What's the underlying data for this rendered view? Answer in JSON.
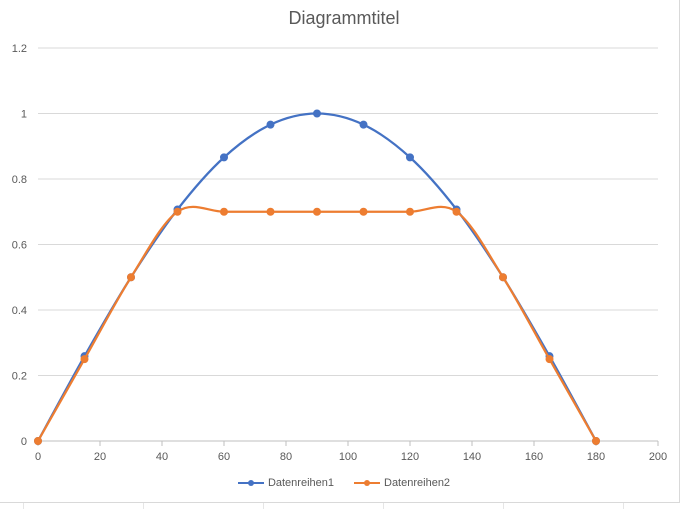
{
  "chart_data": {
    "type": "line",
    "title": "Diagrammtitel",
    "xlim": [
      0,
      200
    ],
    "ylim": [
      0,
      1.2
    ],
    "x_ticks": [
      0,
      20,
      40,
      60,
      80,
      100,
      120,
      140,
      160,
      180,
      200
    ],
    "y_ticks": [
      0,
      0.2,
      0.4,
      0.6,
      0.8,
      1,
      1.2
    ],
    "y_tick_labels": [
      "0",
      "0.2",
      "0.4",
      "0.6",
      "0.8",
      "1",
      "1.2"
    ],
    "grid": "horizontal",
    "legend_position": "bottom",
    "series": [
      {
        "name": "Datenreihen1",
        "color": "#4472c4",
        "x": [
          0,
          15,
          30,
          45,
          60,
          75,
          90,
          105,
          120,
          135,
          150,
          165,
          180
        ],
        "y": [
          0,
          0.259,
          0.5,
          0.707,
          0.866,
          0.966,
          1.0,
          0.966,
          0.866,
          0.707,
          0.5,
          0.259,
          0
        ]
      },
      {
        "name": "Datenreihen2",
        "color": "#ed7d31",
        "x": [
          0,
          15,
          30,
          45,
          60,
          75,
          90,
          105,
          120,
          135,
          150,
          165,
          180
        ],
        "y": [
          0,
          0.25,
          0.5,
          0.7,
          0.7,
          0.7,
          0.7,
          0.7,
          0.7,
          0.7,
          0.5,
          0.25,
          0
        ]
      }
    ]
  }
}
